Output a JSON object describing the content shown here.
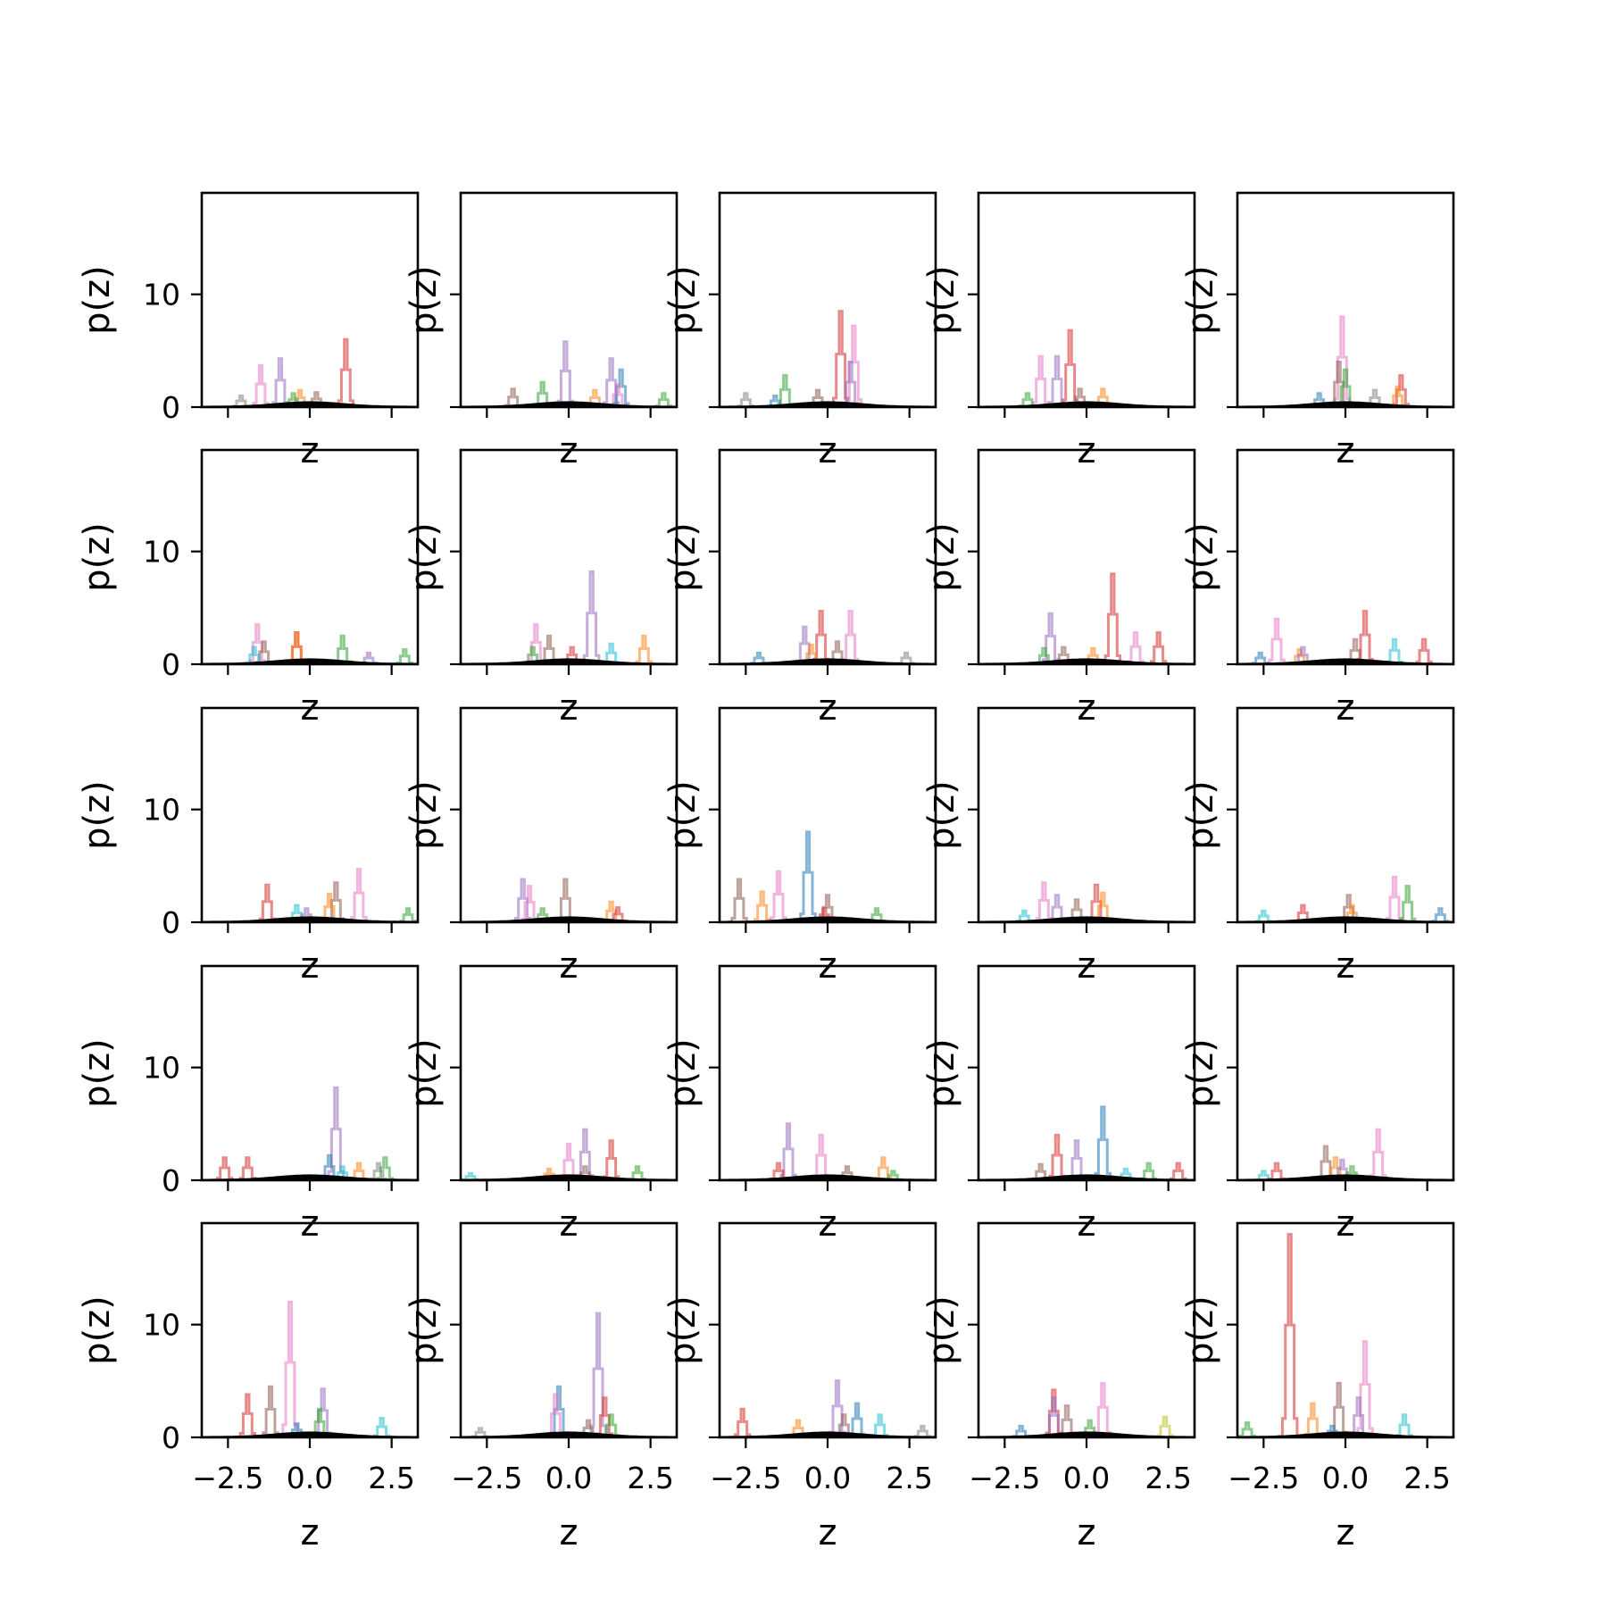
{
  "chart_data": {
    "type": "histogram-grid",
    "rows": 5,
    "cols": 5,
    "xlabel": "z",
    "ylabel": "p(z)",
    "xlim": [
      -3.3,
      3.3
    ],
    "ylim": [
      0,
      19
    ],
    "xticks": [
      -2.5,
      0.0,
      2.5
    ],
    "xtick_labels": [
      "−2.5",
      "0.0",
      "2.5"
    ],
    "yticks": [
      0,
      10
    ],
    "ytick_labels": [
      "0",
      "10"
    ],
    "grid": false,
    "legend": "none",
    "series_colors": [
      "#1f77b4",
      "#ff7f0e",
      "#2ca02c",
      "#d62728",
      "#9467bd",
      "#8c564b",
      "#e377c2",
      "#7f7f7f",
      "#bcbd22",
      "#17becf"
    ],
    "reference_density": {
      "color": "#000000",
      "type": "standard-normal",
      "peak": 0.4
    },
    "panels": [
      {
        "peaks": [
          [
            3,
            1.1,
            6.0
          ],
          [
            6,
            -1.5,
            3.7
          ],
          [
            4,
            -0.9,
            4.3
          ],
          [
            1,
            -0.3,
            1.5
          ],
          [
            5,
            0.2,
            1.3
          ],
          [
            7,
            -2.1,
            1.0
          ],
          [
            2,
            -0.5,
            1.2
          ]
        ]
      },
      {
        "peaks": [
          [
            4,
            -0.1,
            5.8
          ],
          [
            4,
            1.3,
            4.3
          ],
          [
            0,
            1.6,
            3.3
          ],
          [
            2,
            -0.8,
            2.2
          ],
          [
            5,
            -1.7,
            1.6
          ],
          [
            2,
            2.9,
            1.2
          ],
          [
            1,
            0.8,
            1.5
          ],
          [
            6,
            1.5,
            2.0
          ]
        ]
      },
      {
        "peaks": [
          [
            3,
            0.4,
            8.5
          ],
          [
            6,
            0.8,
            7.2
          ],
          [
            2,
            -1.3,
            2.8
          ],
          [
            4,
            0.7,
            4.0
          ],
          [
            5,
            -0.3,
            1.5
          ],
          [
            7,
            -2.5,
            1.2
          ],
          [
            0,
            -1.6,
            1.0
          ]
        ]
      },
      {
        "peaks": [
          [
            3,
            -0.5,
            6.8
          ],
          [
            6,
            -1.4,
            4.5
          ],
          [
            4,
            -0.9,
            4.5
          ],
          [
            1,
            0.5,
            1.6
          ],
          [
            2,
            -1.8,
            1.2
          ],
          [
            5,
            -0.2,
            1.6
          ]
        ]
      },
      {
        "peaks": [
          [
            6,
            -0.1,
            8.0
          ],
          [
            5,
            -0.2,
            4.0
          ],
          [
            2,
            0.0,
            3.3
          ],
          [
            3,
            1.7,
            2.8
          ],
          [
            1,
            1.6,
            1.8
          ],
          [
            0,
            -0.8,
            1.2
          ],
          [
            7,
            0.9,
            1.5
          ]
        ]
      },
      {
        "peaks": [
          [
            6,
            -1.6,
            3.5
          ],
          [
            3,
            -0.4,
            2.8
          ],
          [
            5,
            -1.4,
            2.0
          ],
          [
            1,
            -0.4,
            2.8
          ],
          [
            2,
            1.0,
            2.5
          ],
          [
            4,
            1.8,
            1.0
          ],
          [
            2,
            2.9,
            1.3
          ],
          [
            9,
            -1.7,
            1.5
          ]
        ]
      },
      {
        "peaks": [
          [
            4,
            0.7,
            8.2
          ],
          [
            6,
            -1.0,
            3.5
          ],
          [
            5,
            -0.6,
            2.5
          ],
          [
            1,
            2.3,
            2.5
          ],
          [
            9,
            1.3,
            1.8
          ],
          [
            3,
            0.1,
            1.5
          ],
          [
            2,
            -1.1,
            1.5
          ]
        ]
      },
      {
        "peaks": [
          [
            3,
            -0.2,
            4.7
          ],
          [
            6,
            0.7,
            4.7
          ],
          [
            4,
            -0.7,
            3.3
          ],
          [
            0,
            -2.1,
            1.0
          ],
          [
            7,
            2.4,
            1.0
          ],
          [
            1,
            -0.5,
            1.7
          ],
          [
            5,
            0.3,
            2.0
          ]
        ]
      },
      {
        "peaks": [
          [
            3,
            0.8,
            8.0
          ],
          [
            4,
            -1.1,
            4.5
          ],
          [
            6,
            1.5,
            2.8
          ],
          [
            3,
            2.2,
            2.8
          ],
          [
            2,
            -1.3,
            1.4
          ],
          [
            1,
            0.2,
            1.4
          ],
          [
            5,
            -0.7,
            1.5
          ]
        ]
      },
      {
        "peaks": [
          [
            3,
            0.6,
            4.7
          ],
          [
            6,
            -2.1,
            4.0
          ],
          [
            5,
            0.3,
            2.2
          ],
          [
            3,
            2.4,
            2.2
          ],
          [
            9,
            1.5,
            2.2
          ],
          [
            1,
            -1.4,
            1.3
          ],
          [
            4,
            -1.3,
            1.5
          ],
          [
            0,
            -2.6,
            1.0
          ]
        ]
      },
      {
        "peaks": [
          [
            6,
            1.5,
            4.7
          ],
          [
            3,
            -1.3,
            3.3
          ],
          [
            5,
            0.8,
            3.5
          ],
          [
            1,
            0.6,
            2.5
          ],
          [
            9,
            -0.4,
            1.5
          ],
          [
            2,
            3.0,
            1.2
          ],
          [
            4,
            -0.1,
            1.2
          ]
        ]
      },
      {
        "peaks": [
          [
            4,
            -1.4,
            3.8
          ],
          [
            5,
            -0.1,
            3.8
          ],
          [
            6,
            -1.2,
            3.2
          ],
          [
            1,
            1.3,
            1.8
          ],
          [
            2,
            -0.8,
            1.2
          ],
          [
            3,
            1.5,
            1.3
          ]
        ]
      },
      {
        "peaks": [
          [
            0,
            -0.6,
            8.0
          ],
          [
            6,
            -1.5,
            4.5
          ],
          [
            5,
            -2.7,
            3.8
          ],
          [
            1,
            -2.0,
            2.7
          ],
          [
            5,
            0.0,
            2.4
          ],
          [
            2,
            1.5,
            1.2
          ],
          [
            3,
            -0.1,
            1.2
          ]
        ]
      },
      {
        "peaks": [
          [
            6,
            -1.3,
            3.5
          ],
          [
            3,
            0.3,
            3.3
          ],
          [
            9,
            -1.9,
            1.0
          ],
          [
            5,
            -0.3,
            2.0
          ],
          [
            1,
            0.5,
            2.6
          ],
          [
            4,
            -0.9,
            2.4
          ]
        ]
      },
      {
        "peaks": [
          [
            6,
            1.5,
            4.0
          ],
          [
            2,
            1.9,
            3.2
          ],
          [
            5,
            0.1,
            2.4
          ],
          [
            9,
            -2.5,
            1.0
          ],
          [
            3,
            -1.3,
            1.5
          ],
          [
            1,
            0.2,
            1.5
          ],
          [
            0,
            2.9,
            1.2
          ]
        ]
      },
      {
        "peaks": [
          [
            4,
            0.8,
            8.2
          ],
          [
            0,
            0.6,
            2.2
          ],
          [
            3,
            -2.6,
            2.0
          ],
          [
            3,
            -1.9,
            2.0
          ],
          [
            2,
            2.3,
            2.0
          ],
          [
            1,
            1.5,
            1.5
          ],
          [
            7,
            2.1,
            1.5
          ],
          [
            9,
            1.0,
            1.2
          ]
        ]
      },
      {
        "peaks": [
          [
            4,
            0.5,
            4.5
          ],
          [
            6,
            0.0,
            3.2
          ],
          [
            3,
            1.3,
            3.5
          ],
          [
            9,
            -3.0,
            0.6
          ],
          [
            2,
            2.1,
            1.2
          ],
          [
            1,
            -0.6,
            1.0
          ],
          [
            5,
            0.5,
            1.2
          ]
        ]
      },
      {
        "peaks": [
          [
            4,
            -1.2,
            5.0
          ],
          [
            6,
            -0.2,
            4.0
          ],
          [
            1,
            1.7,
            2.0
          ],
          [
            3,
            -1.5,
            1.5
          ],
          [
            2,
            2.0,
            0.8
          ],
          [
            5,
            0.6,
            1.2
          ]
        ]
      },
      {
        "peaks": [
          [
            0,
            0.5,
            6.5
          ],
          [
            3,
            -0.9,
            4.0
          ],
          [
            5,
            -1.4,
            1.4
          ],
          [
            4,
            -0.3,
            3.5
          ],
          [
            9,
            1.2,
            1.0
          ],
          [
            2,
            1.9,
            1.5
          ],
          [
            3,
            2.8,
            1.5
          ]
        ]
      },
      {
        "peaks": [
          [
            6,
            1.0,
            4.5
          ],
          [
            5,
            -0.6,
            3.0
          ],
          [
            1,
            -0.3,
            2.0
          ],
          [
            3,
            -2.1,
            1.5
          ],
          [
            4,
            -0.1,
            1.8
          ],
          [
            9,
            -2.5,
            0.8
          ],
          [
            2,
            0.2,
            1.2
          ]
        ]
      },
      {
        "peaks": [
          [
            6,
            -0.6,
            12.0
          ],
          [
            3,
            -1.9,
            3.8
          ],
          [
            5,
            -1.2,
            4.5
          ],
          [
            4,
            0.4,
            4.3
          ],
          [
            2,
            0.3,
            2.5
          ],
          [
            9,
            2.2,
            1.7
          ],
          [
            0,
            -0.4,
            1.2
          ]
        ]
      },
      {
        "peaks": [
          [
            4,
            0.9,
            11.0
          ],
          [
            0,
            -0.3,
            4.5
          ],
          [
            3,
            1.1,
            3.5
          ],
          [
            6,
            -0.4,
            3.8
          ],
          [
            2,
            1.3,
            2.0
          ],
          [
            7,
            -2.7,
            0.8
          ],
          [
            5,
            0.6,
            1.5
          ]
        ]
      },
      {
        "peaks": [
          [
            4,
            0.3,
            5.0
          ],
          [
            3,
            -2.6,
            2.5
          ],
          [
            7,
            2.9,
            1.0
          ],
          [
            1,
            -0.9,
            1.5
          ],
          [
            9,
            1.6,
            2.0
          ],
          [
            0,
            0.9,
            3.0
          ],
          [
            5,
            0.5,
            2.0
          ]
        ]
      },
      {
        "peaks": [
          [
            6,
            0.5,
            4.8
          ],
          [
            3,
            -1.0,
            4.2
          ],
          [
            4,
            -1.0,
            3.5
          ],
          [
            5,
            -0.6,
            2.8
          ],
          [
            0,
            -2.0,
            1.0
          ],
          [
            8,
            2.4,
            1.8
          ],
          [
            2,
            0.1,
            1.5
          ]
        ]
      },
      {
        "peaks": [
          [
            3,
            -1.7,
            18.0
          ],
          [
            6,
            0.6,
            8.5
          ],
          [
            5,
            -0.2,
            4.8
          ],
          [
            1,
            -1.0,
            3.0
          ],
          [
            9,
            1.8,
            2.0
          ],
          [
            4,
            0.4,
            3.5
          ],
          [
            2,
            -3.0,
            1.3
          ],
          [
            0,
            -0.4,
            1.0
          ]
        ]
      }
    ]
  }
}
